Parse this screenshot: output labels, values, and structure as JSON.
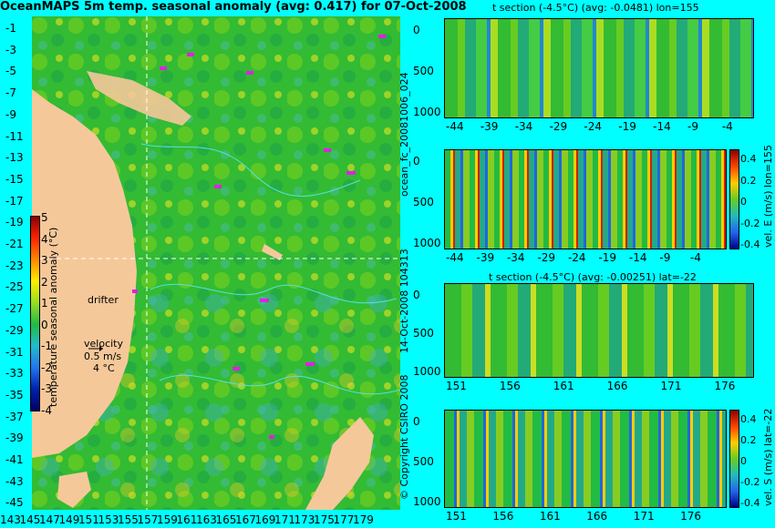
{
  "map": {
    "title": "OceanMAPS 5m temp. seasonal anomaly (avg: 0.417) for 07-Oct-2008",
    "lat_ticks": [
      "-1",
      "-3",
      "-5",
      "-7",
      "-9",
      "-11",
      "-13",
      "-15",
      "-17",
      "-19",
      "-21",
      "-23",
      "-25",
      "-27",
      "-29",
      "-31",
      "-33",
      "-35",
      "-37",
      "-39",
      "-41",
      "-43",
      "-45"
    ],
    "lon_ticks": [
      "143",
      "145",
      "147",
      "149",
      "151",
      "153",
      "155",
      "157",
      "159",
      "161",
      "163",
      "165",
      "167",
      "169",
      "171",
      "173",
      "175",
      "177",
      "179"
    ],
    "colorbar_label": "temperature seasonal anomaly (°C)",
    "colorbar_ticks": [
      "5",
      "4",
      "3",
      "2",
      "1",
      "0",
      "-1",
      "-2",
      "-3",
      "-4"
    ],
    "drifter_label": "drifter",
    "velocity_label": "velocity",
    "velocity_value": "0.5 m/s",
    "velocity_value2": "4 °C",
    "colors": {
      "land": "#f5c89a",
      "ocean": "#33bb33",
      "contour": "#55e0e0",
      "marker": "#e020e0"
    }
  },
  "sections": [
    {
      "title": "t section (-4.5°C) (avg: -0.0481) lon=155",
      "y_ticks": [
        "0",
        "500",
        "1000"
      ],
      "x_ticks": [
        "-44",
        "-39",
        "-34",
        "-29",
        "-24",
        "-19",
        "-14",
        "-9",
        "-4"
      ]
    },
    {
      "title": "",
      "y_ticks": [
        "0",
        "500",
        "1000"
      ],
      "x_ticks": [
        "-44",
        "-39",
        "-34",
        "-29",
        "-24",
        "-19",
        "-14",
        "-9",
        "-4"
      ],
      "cbar_label": "vel. E (m/s) lon=155",
      "cbar_ticks": [
        "0.4",
        "0.2",
        "0",
        "-0.2",
        "-0.4"
      ]
    },
    {
      "title": "t section (-4.5°C) (avg: -0.00251) lat=-22",
      "y_ticks": [
        "0",
        "500",
        "1000"
      ],
      "x_ticks": [
        "151",
        "156",
        "161",
        "166",
        "171",
        "176"
      ]
    },
    {
      "title": "",
      "y_ticks": [
        "0",
        "500",
        "1000"
      ],
      "x_ticks": [
        "151",
        "156",
        "161",
        "166",
        "171",
        "176"
      ],
      "cbar_label": "vel. S (m/s) lat=-22",
      "cbar_ticks": [
        "0.4",
        "0.2",
        "0",
        "-0.2",
        "-0.4"
      ]
    }
  ],
  "side_labels": {
    "forecast": "ocean_fc_20081006_024",
    "generated": "14-Oct-2008 104313",
    "copyright": "© Copyright CSIRO 2008"
  }
}
